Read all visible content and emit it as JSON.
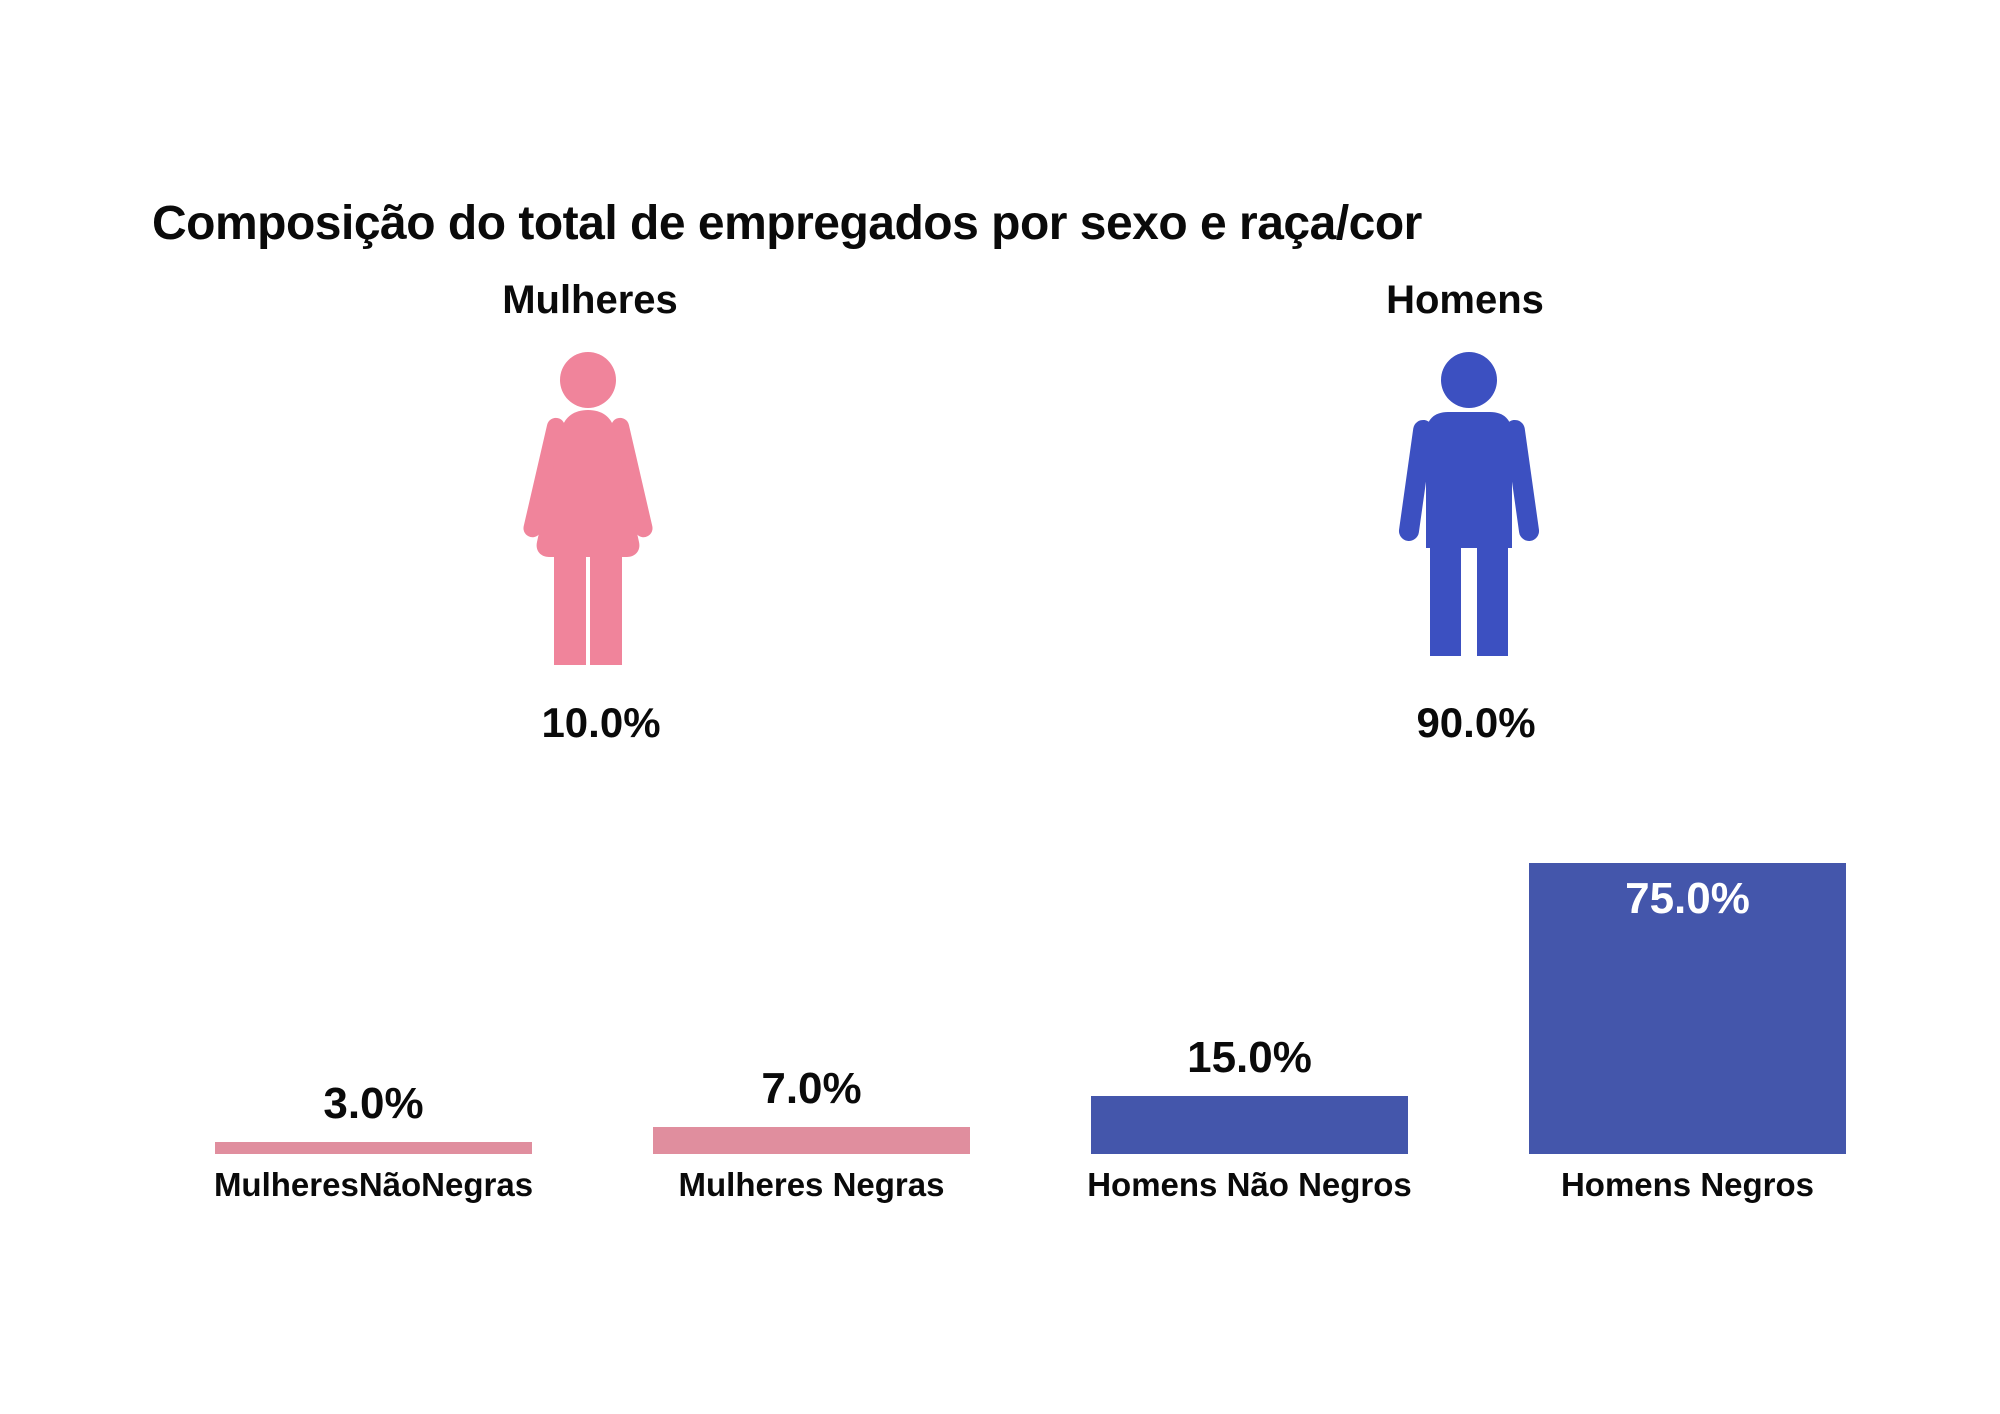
{
  "title": "Composição do total de empregados por sexo e raça/cor",
  "colors": {
    "background": "#ffffff",
    "text": "#0a0a0a",
    "female_icon_pink": "#f0849b",
    "male_icon_blue": "#3c50c1",
    "bar_pink": "#e08e9e",
    "bar_blue": "#4456ab",
    "inside_bar_label": "#ffffff"
  },
  "chart_data": [
    {
      "type": "pictogram",
      "title": "Composição do total de empregados por sexo e raça/cor",
      "categories": [
        "Mulheres",
        "Homens"
      ],
      "values": [
        10.0,
        90.0
      ],
      "value_labels": [
        "10.0%",
        "90.0%"
      ],
      "colors": [
        "#f0849b",
        "#3c50c1"
      ],
      "icons": [
        "female-person-icon",
        "male-person-icon"
      ],
      "grid": false
    },
    {
      "type": "bar",
      "categories": [
        "MulheresNãoNegras",
        "Mulheres Negras",
        "Homens Não Negros",
        "Homens Negros"
      ],
      "values": [
        3.0,
        7.0,
        15.0,
        75.0
      ],
      "value_labels": [
        "3.0%",
        "7.0%",
        "15.0%",
        "75.0%"
      ],
      "bar_colors": [
        "#e08e9e",
        "#e08e9e",
        "#4456ab",
        "#4456ab"
      ],
      "value_label_inside": [
        false,
        false,
        false,
        true
      ],
      "xlabel": "",
      "ylabel": "",
      "ylim": [
        0,
        78
      ],
      "grid": false,
      "legend": "none"
    }
  ]
}
